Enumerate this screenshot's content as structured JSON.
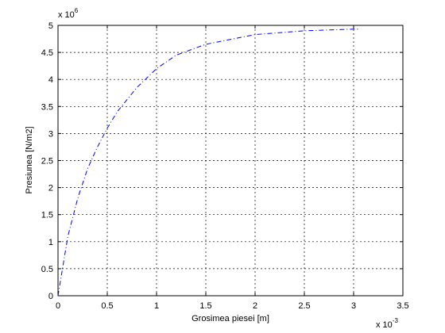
{
  "chart_data": {
    "type": "line",
    "xlabel": "Grosimea piesei [m]",
    "ylabel": "Presiunea [N/m2]",
    "x_exponent": {
      "base": "x 10",
      "power": "-3"
    },
    "y_exponent": {
      "base": "x 10",
      "power": "6"
    },
    "x": [
      0,
      0.1,
      0.2,
      0.3,
      0.4,
      0.5,
      0.6,
      0.8,
      1.0,
      1.2,
      1.5,
      2.0,
      2.5,
      3.0,
      3.05
    ],
    "series": [
      {
        "color": "#0000ff",
        "values": [
          0,
          1.1,
          1.8,
          2.35,
          2.75,
          3.1,
          3.4,
          3.85,
          4.2,
          4.45,
          4.65,
          4.83,
          4.9,
          4.93,
          4.93
        ]
      }
    ],
    "xlim": [
      0,
      3.5
    ],
    "ylim": [
      0,
      5
    ],
    "xticks": [
      0,
      0.5,
      1,
      1.5,
      2,
      2.5,
      3,
      3.5
    ],
    "yticks": [
      0,
      0.5,
      1,
      1.5,
      2,
      2.5,
      3,
      3.5,
      4,
      4.5,
      5
    ],
    "grid": true
  }
}
